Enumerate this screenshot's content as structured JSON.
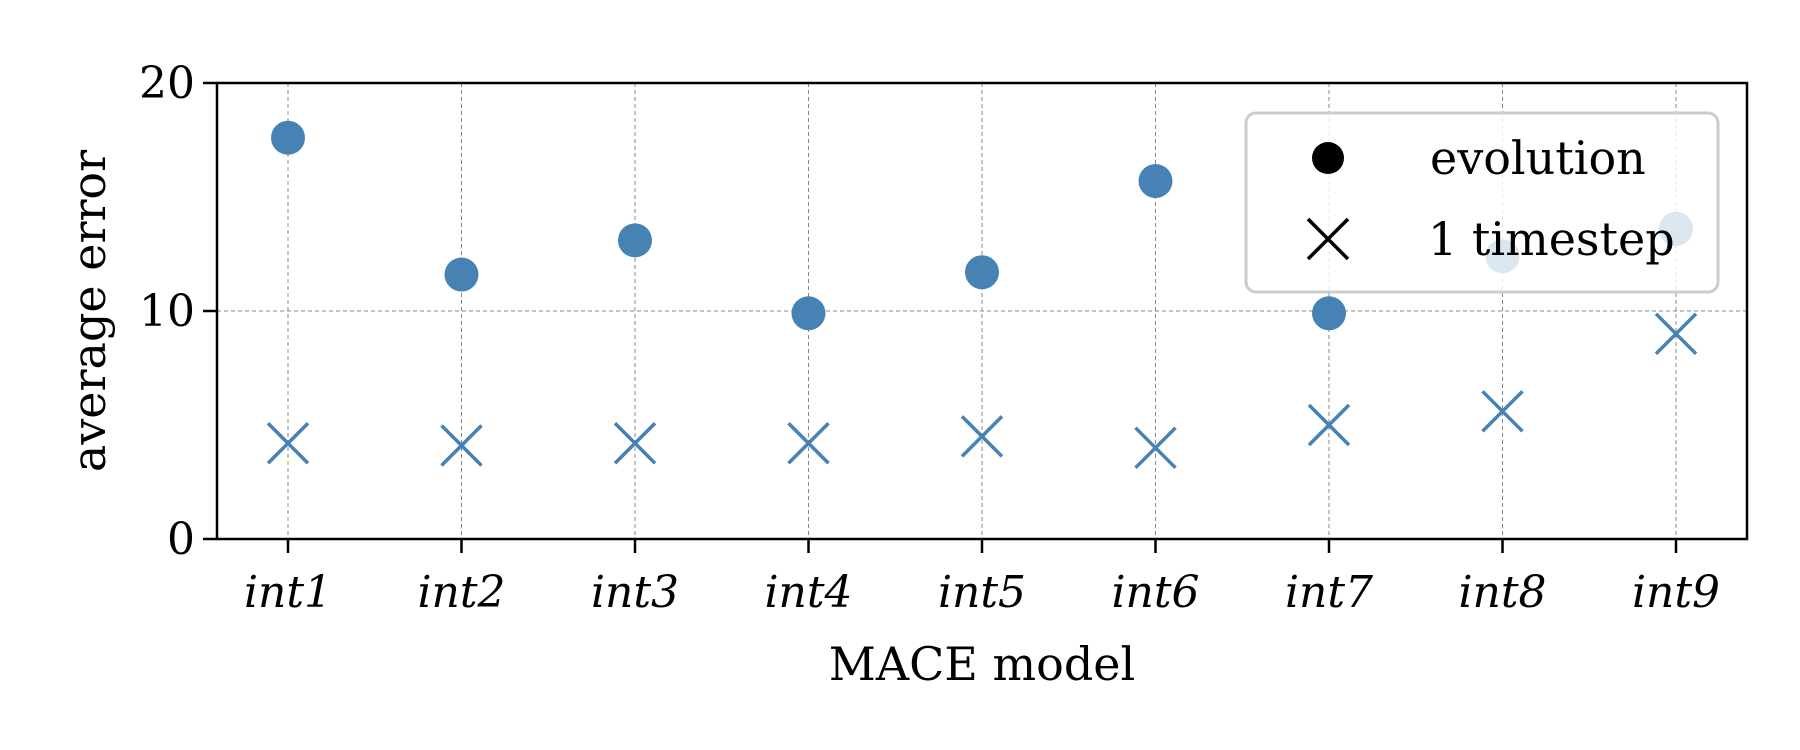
{
  "chart_data": {
    "type": "scatter",
    "title": "",
    "xlabel": "MACE model",
    "ylabel": "average error",
    "categories": [
      "int1",
      "int2",
      "int3",
      "int4",
      "int5",
      "int6",
      "int7",
      "int8",
      "int9"
    ],
    "ylim": [
      0,
      20
    ],
    "yticks": [
      "0",
      "10",
      "20"
    ],
    "grid": true,
    "legend_position": "top-right",
    "series": [
      {
        "name": "evolution",
        "marker": "circle",
        "color": "#4682b4",
        "values": [
          17.6,
          11.6,
          13.1,
          9.9,
          11.7,
          15.7,
          9.9,
          12.4,
          13.6
        ]
      },
      {
        "name": "1 timestep",
        "marker": "x",
        "color": "#4682b4",
        "values": [
          4.2,
          4.1,
          4.2,
          4.2,
          4.5,
          4.0,
          5.0,
          5.6,
          9.0
        ]
      }
    ]
  }
}
